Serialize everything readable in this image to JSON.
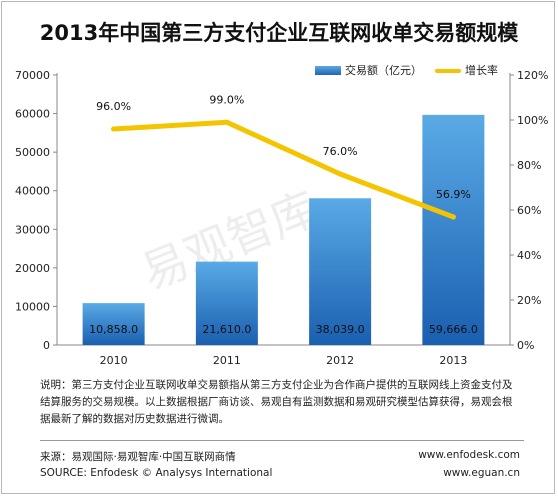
{
  "chart_data": {
    "type": "bar",
    "title": "2013年中国第三方支付企业互联网收单交易额规模",
    "categories": [
      "2010",
      "2011",
      "2012",
      "2013"
    ],
    "series": [
      {
        "name": "交易额（亿元）",
        "type": "bar",
        "axis": "left",
        "values": [
          10858.0,
          21610.0,
          38039.0,
          59666.0
        ],
        "data_labels": [
          "10,858.0",
          "21,610.0",
          "38,039.0",
          "59,666.0"
        ],
        "color": "#1f6fbf"
      },
      {
        "name": "增长率",
        "type": "line",
        "axis": "right",
        "values": [
          96.0,
          99.0,
          76.0,
          56.9
        ],
        "data_labels": [
          "96.0%",
          "99.0%",
          "76.0%",
          "56.9%"
        ],
        "color": "#f5c400"
      }
    ],
    "y_left": {
      "range": [
        0,
        70000
      ],
      "ticks": [
        "0",
        "10000",
        "20000",
        "30000",
        "40000",
        "50000",
        "60000",
        "70000"
      ]
    },
    "y_right": {
      "range": [
        0,
        120
      ],
      "ticks": [
        "0%",
        "20%",
        "40%",
        "60%",
        "80%",
        "100%",
        "120%"
      ]
    },
    "legend": "top-right",
    "grid": false,
    "watermark": "易观智库"
  },
  "legend": {
    "bar_label": "交易额（亿元）",
    "line_label": "增长率"
  },
  "note": "说明：第三方支付企业互联网收单交易额指从第三方支付企业为合作商户提供的互联网线上资金支付及结算服务的交易规模。以上数据根据厂商访谈、易观自有监测数据和易观研究模型估算获得，易观会根据最新了解的数据对历史数据进行微调。",
  "source": {
    "cn": "来源：易观国际·易观智库·中国互联网商情",
    "en": "SOURCE: Enfodesk © Analysys International"
  },
  "urls": [
    "www.enfodesk.com",
    "www.eguan.cn"
  ]
}
